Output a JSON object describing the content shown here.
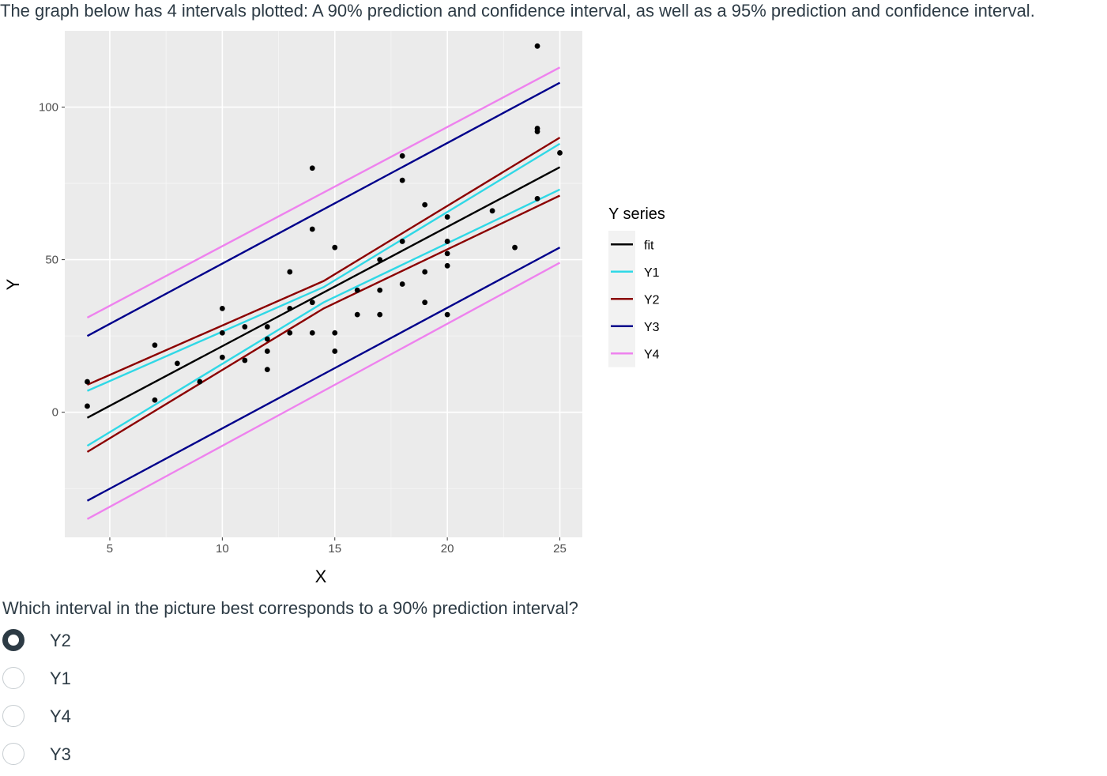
{
  "question": {
    "prompt": "The graph below has 4 intervals plotted: A 90% prediction and confidence interval, as well as a 95% prediction and confidence interval.",
    "text": "Which interval in the picture best corresponds to a 90% prediction interval?",
    "options": [
      {
        "label": "Y2",
        "selected": true
      },
      {
        "label": "Y1",
        "selected": false
      },
      {
        "label": "Y4",
        "selected": false
      },
      {
        "label": "Y3",
        "selected": false
      }
    ]
  },
  "chart_data": {
    "type": "scatter",
    "title": "",
    "xlabel": "X",
    "ylabel": "Y",
    "xlim": [
      3,
      26
    ],
    "ylim": [
      -41,
      125
    ],
    "xticks": [
      5,
      10,
      15,
      20,
      25
    ],
    "yticks": [
      0,
      50,
      100
    ],
    "grid": true,
    "legend_title": "Y series",
    "legend_position": "right",
    "points": [
      [
        4,
        2
      ],
      [
        4,
        10
      ],
      [
        7,
        4
      ],
      [
        7,
        22
      ],
      [
        8,
        16
      ],
      [
        9,
        10
      ],
      [
        10,
        18
      ],
      [
        10,
        26
      ],
      [
        10,
        34
      ],
      [
        11,
        17
      ],
      [
        11,
        28
      ],
      [
        12,
        14
      ],
      [
        12,
        20
      ],
      [
        12,
        24
      ],
      [
        12,
        28
      ],
      [
        13,
        26
      ],
      [
        13,
        34
      ],
      [
        13,
        46
      ],
      [
        14,
        26
      ],
      [
        14,
        36
      ],
      [
        14,
        60
      ],
      [
        14,
        80
      ],
      [
        15,
        20
      ],
      [
        15,
        26
      ],
      [
        15,
        54
      ],
      [
        16,
        32
      ],
      [
        16,
        40
      ],
      [
        17,
        32
      ],
      [
        17,
        40
      ],
      [
        17,
        50
      ],
      [
        18,
        42
      ],
      [
        18,
        56
      ],
      [
        18,
        76
      ],
      [
        18,
        84
      ],
      [
        19,
        36
      ],
      [
        19,
        46
      ],
      [
        19,
        68
      ],
      [
        20,
        32
      ],
      [
        20,
        48
      ],
      [
        20,
        52
      ],
      [
        20,
        56
      ],
      [
        20,
        64
      ],
      [
        22,
        66
      ],
      [
        23,
        54
      ],
      [
        24,
        70
      ],
      [
        24,
        92
      ],
      [
        24,
        93
      ],
      [
        24,
        120
      ],
      [
        25,
        85
      ]
    ],
    "series": [
      {
        "name": "fit",
        "color": "#000000",
        "x": [
          4,
          25
        ],
        "y": [
          -1.8,
          80.3
        ]
      },
      {
        "name": "Y1",
        "color": "#2fd8e6",
        "x": [
          4,
          14.5,
          25
        ],
        "y": [
          7,
          41,
          88
        ]
      },
      {
        "name": "Y1",
        "color": "#2fd8e6",
        "x": [
          4,
          14.5,
          25
        ],
        "y": [
          -11,
          36,
          73
        ]
      },
      {
        "name": "Y2",
        "color": "#8b0000",
        "x": [
          4,
          14.5,
          25
        ],
        "y": [
          9,
          43,
          90
        ]
      },
      {
        "name": "Y2",
        "color": "#8b0000",
        "x": [
          4,
          14.5,
          25
        ],
        "y": [
          -13,
          34,
          71
        ]
      },
      {
        "name": "Y3",
        "color": "#00008b",
        "x": [
          4,
          25
        ],
        "y": [
          25,
          108
        ]
      },
      {
        "name": "Y3",
        "color": "#00008b",
        "x": [
          4,
          25
        ],
        "y": [
          -29,
          54
        ]
      },
      {
        "name": "Y4",
        "color": "#ee82ee",
        "x": [
          4,
          25
        ],
        "y": [
          31,
          113
        ]
      },
      {
        "name": "Y4",
        "color": "#ee82ee",
        "x": [
          4,
          25
        ],
        "y": [
          -35,
          49
        ]
      }
    ],
    "legend": [
      {
        "label": "fit",
        "color": "#000000"
      },
      {
        "label": "Y1",
        "color": "#2fd8e6"
      },
      {
        "label": "Y2",
        "color": "#8b0000"
      },
      {
        "label": "Y3",
        "color": "#00008b"
      },
      {
        "label": "Y4",
        "color": "#ee82ee"
      }
    ]
  }
}
